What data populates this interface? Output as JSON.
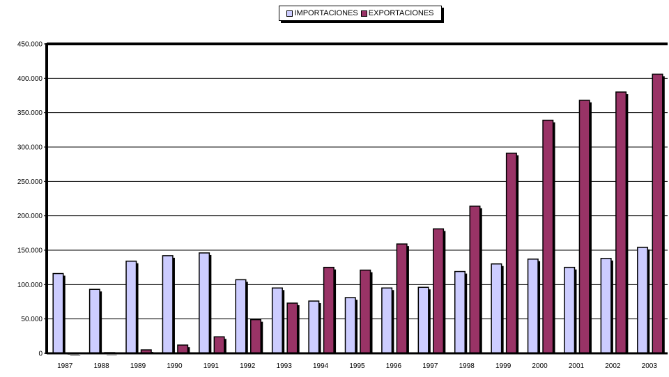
{
  "chart_data": {
    "type": "bar",
    "categories": [
      "1987",
      "1988",
      "1989",
      "1990",
      "1991",
      "1992",
      "1993",
      "1994",
      "1995",
      "1996",
      "1997",
      "1998",
      "1999",
      "2000",
      "2001",
      "2002",
      "2003"
    ],
    "series": [
      {
        "name": "IMPORTACIONES",
        "color": "#ccccff",
        "values": [
          116000,
          93000,
          134000,
          142000,
          146000,
          107000,
          95000,
          76000,
          81000,
          95000,
          96000,
          119000,
          130000,
          137000,
          125000,
          138000,
          154000
        ]
      },
      {
        "name": "EXPORTACIONES",
        "color": "#993366",
        "values": [
          0,
          1000,
          5000,
          12000,
          24000,
          49000,
          73000,
          125000,
          121000,
          159000,
          181000,
          214000,
          291000,
          339000,
          368000,
          380000,
          406000
        ]
      }
    ],
    "ylim": [
      0,
      450000
    ],
    "yticks": [
      "0",
      "50.000",
      "100.000",
      "150.000",
      "200.000",
      "250.000",
      "300.000",
      "350.000",
      "400.000",
      "450.000"
    ],
    "grid": true,
    "legend_position": "top"
  }
}
